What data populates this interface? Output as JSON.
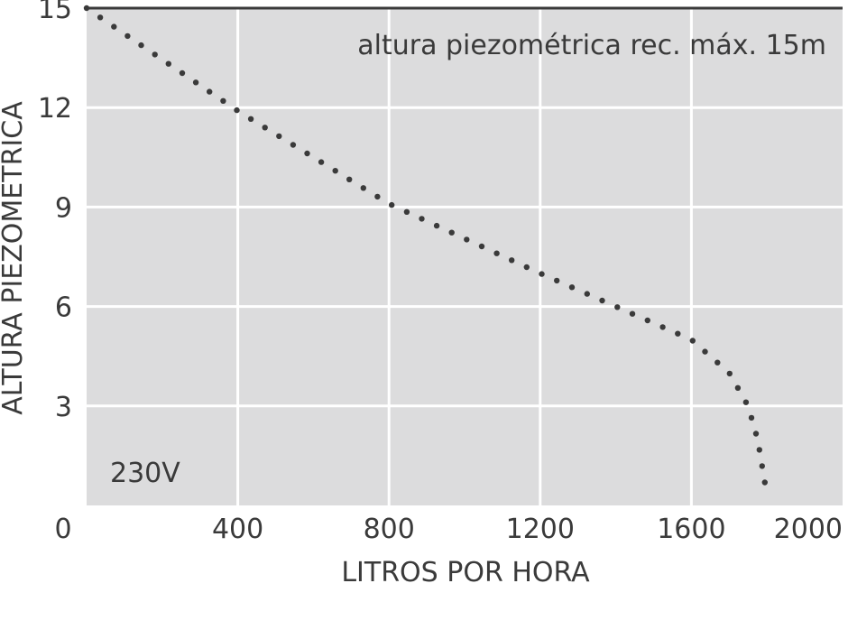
{
  "chart_data": {
    "type": "line",
    "xlabel": "LITROS POR HORA",
    "ylabel": "ALTURA PIEZOMETRICA",
    "xlim": [
      0,
      2000
    ],
    "ylim": [
      0,
      15
    ],
    "x_ticks": [
      "0",
      "400",
      "800",
      "1200",
      "1600",
      "2000"
    ],
    "y_ticks": [
      "3",
      "6",
      "9",
      "12",
      "15"
    ],
    "grid": true,
    "line_style": "dotted",
    "annotations": {
      "max_head": "altura piezométrica rec. máx. 15m",
      "voltage": "230V"
    },
    "series": [
      {
        "x": [
          0,
          400,
          800,
          1200,
          1600,
          1700,
          1750,
          1775,
          1790,
          1800
        ],
        "y": [
          15,
          11.9,
          9.1,
          7.0,
          5.0,
          4.0,
          3.0,
          2.0,
          1.0,
          0.3
        ]
      }
    ],
    "colors": {
      "background": "#dcdcdd",
      "grid": "#ffffff",
      "line": "#3a3a3a"
    }
  }
}
